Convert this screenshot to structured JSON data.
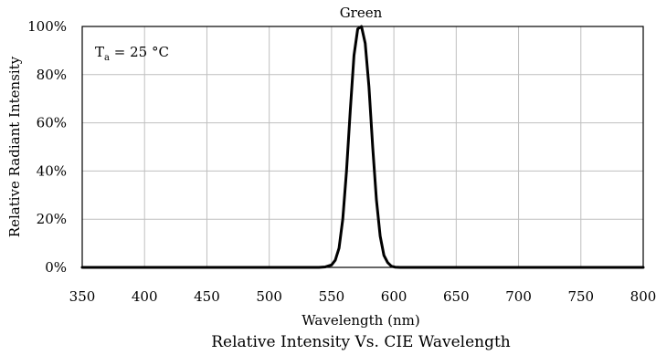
{
  "chart_data": {
    "type": "line",
    "title": "Green",
    "xlabel": "Wavelength (nm)",
    "ylabel": "Relative Radiant Intensity",
    "caption": "Relative Intensity Vs. CIE Wavelength",
    "annotation": {
      "base": "T",
      "sub": "a",
      "rest": " = 25 °C"
    },
    "xlim": [
      350,
      800
    ],
    "ylim": [
      0,
      100
    ],
    "x_ticks": [
      350,
      400,
      450,
      500,
      550,
      600,
      650,
      700,
      750,
      800
    ],
    "x_tick_labels": [
      "350",
      "400",
      "450",
      "500",
      "550",
      "600",
      "650",
      "700",
      "750",
      "800"
    ],
    "y_ticks": [
      0,
      20,
      40,
      60,
      80,
      100
    ],
    "y_tick_labels": [
      "0%",
      "20%",
      "40%",
      "60%",
      "80%",
      "100%"
    ],
    "grid": true,
    "series": [
      {
        "color": "#000000",
        "x": [
          350,
          540,
          545,
          550,
          553,
          556,
          559,
          562,
          565,
          568,
          571,
          574,
          577,
          580,
          583,
          586,
          589,
          592,
          595,
          598,
          601,
          605,
          610,
          800
        ],
        "y": [
          0,
          0,
          0.2,
          1,
          3,
          8,
          20,
          40,
          65,
          88,
          99,
          100,
          93,
          75,
          50,
          28,
          13,
          5,
          2,
          0.5,
          0.1,
          0,
          0,
          0
        ]
      }
    ]
  }
}
